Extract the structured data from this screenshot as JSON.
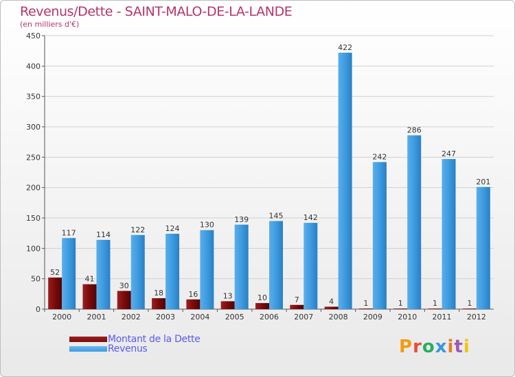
{
  "title": "Revenus/Dette - SAINT-MALO-DE-LA-LANDE",
  "subtitle": "(en milliers d'€)",
  "logo": {
    "text": "Proxiti",
    "colors": [
      "#f39c12",
      "#e74c3c",
      "#27ae60",
      "#3498db",
      "#e67e22",
      "#9b59b6",
      "#f1c40f"
    ]
  },
  "colors": {
    "dette": "#7a0a0a",
    "revenus": "#3d9be0",
    "axis_text": "#333333",
    "grid": "#d0d0d0"
  },
  "chart_data": {
    "type": "bar",
    "categories": [
      "2000",
      "2001",
      "2002",
      "2003",
      "2004",
      "2005",
      "2006",
      "2007",
      "2008",
      "2009",
      "2010",
      "2011",
      "2012"
    ],
    "series": [
      {
        "name": "Montant de la Dette",
        "values": [
          52,
          41,
          30,
          18,
          16,
          13,
          10,
          7,
          4,
          1,
          1,
          1,
          1
        ]
      },
      {
        "name": "Revenus",
        "values": [
          117,
          114,
          122,
          124,
          130,
          139,
          145,
          142,
          422,
          242,
          286,
          247,
          201
        ]
      }
    ],
    "ylim": [
      0,
      450
    ],
    "yticks": [
      0,
      50,
      100,
      150,
      200,
      250,
      300,
      350,
      400,
      450
    ],
    "grid": true,
    "legend_position": "bottom-left"
  }
}
